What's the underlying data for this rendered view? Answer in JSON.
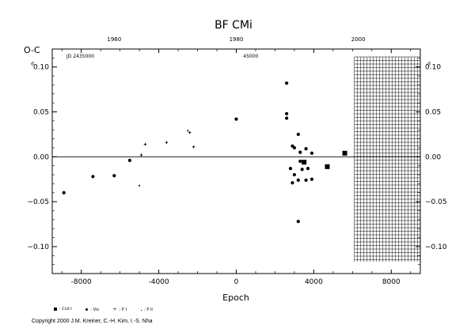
{
  "chart_data": {
    "type": "scatter",
    "title": "BF CMi",
    "ylabel": "O-C",
    "ylabel_unit": "d",
    "ylabel_right_unit": "d",
    "xlabel": "Epoch",
    "xlim": [
      -9500,
      9500
    ],
    "ylim": [
      -0.13,
      0.12
    ],
    "x_ticks": [
      "-8000",
      "-4000",
      "0",
      "4000",
      "8000"
    ],
    "x_tick_values": [
      -8000,
      -4000,
      0,
      4000,
      8000
    ],
    "y_ticks": [
      "-0.10",
      "-0.05",
      "0.00",
      "0.05",
      "0.10"
    ],
    "y_tick_labels_left": [
      "−0.10",
      "−0.05",
      "0.00",
      "0.05",
      "0.10"
    ],
    "y_tick_labels_right": [
      "−0.10",
      "−0.05",
      "0.00",
      "0.05",
      "0.10"
    ],
    "y_tick_values": [
      -0.1,
      -0.05,
      0,
      0.05,
      0.1
    ],
    "top_axis_label": "JD 2435000",
    "top_ticks": [
      "1960",
      "1980",
      "2000"
    ],
    "top_tick_epochs": [
      -6300,
      0,
      6300
    ],
    "top_jd_label": "45000",
    "top_jd_epoch": 750,
    "hatched_region_x": [
      6100,
      9500
    ],
    "zero_line": true,
    "series": [
      {
        "name": ": Ccd I",
        "marker": "square",
        "points": [
          [
            3500,
            -0.006
          ],
          [
            4700,
            -0.011
          ],
          [
            5600,
            0.004
          ]
        ]
      },
      {
        "name": ": Vis",
        "marker": "dot",
        "points": [
          [
            -8900,
            -0.04
          ],
          [
            -7400,
            -0.022
          ],
          [
            -6300,
            -0.021
          ],
          [
            -5500,
            -0.004
          ],
          [
            0,
            0.042
          ],
          [
            2600,
            0.082
          ],
          [
            2600,
            0.048
          ],
          [
            2600,
            0.043
          ],
          [
            2900,
            0.012
          ],
          [
            3000,
            0.01
          ],
          [
            3200,
            0.025
          ],
          [
            3300,
            0.005
          ],
          [
            3600,
            0.009
          ],
          [
            3900,
            0.004
          ],
          [
            2800,
            -0.013
          ],
          [
            3000,
            -0.02
          ],
          [
            3300,
            -0.005
          ],
          [
            3400,
            -0.014
          ],
          [
            3700,
            -0.013
          ],
          [
            2900,
            -0.029
          ],
          [
            3200,
            -0.026
          ],
          [
            3600,
            -0.026
          ],
          [
            3900,
            -0.025
          ],
          [
            3200,
            -0.072
          ]
        ]
      },
      {
        "name": ": P I",
        "marker": "plus",
        "points": [
          [
            -4700,
            0.014
          ],
          [
            -3600,
            0.016
          ],
          [
            -2200,
            0.011
          ],
          [
            -4900,
            0.002
          ],
          [
            -2400,
            0.027
          ]
        ]
      },
      {
        "name": ": P II",
        "marker": "tiny",
        "points": [
          [
            -5000,
            -0.032
          ],
          [
            -2500,
            0.029
          ]
        ]
      }
    ]
  },
  "copyright": "Copyright 2000 J.M. Kreiner, C.-H. Kim, I.-S. Nha",
  "colors": {
    "ink": "#000000",
    "background": "#ffffff"
  }
}
